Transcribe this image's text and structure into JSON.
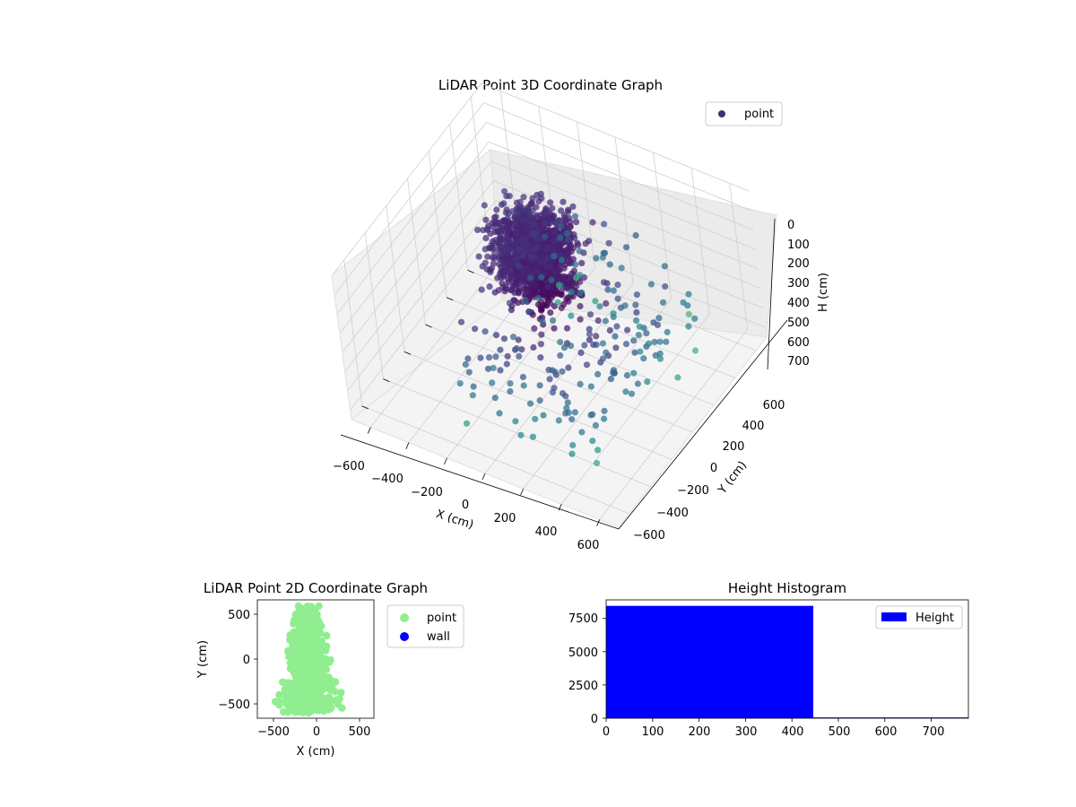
{
  "colors": {
    "point_3d": "#472d7b",
    "point_2d": "#90ee90",
    "wall": "#0000ff",
    "hist_bar": "#0000ff",
    "pane": "#f2f2f2",
    "grid": "#cfcfcf"
  },
  "chart_data": [
    {
      "type": "scatter",
      "title": "LiDAR Point 3D Coordinate Graph",
      "xlabel": "X (cm)",
      "ylabel": "Y (cm)",
      "zlabel": "H (cm)",
      "x_ticks": [
        "−600",
        "−400",
        "−200",
        "0",
        "200",
        "400",
        "600"
      ],
      "y_ticks": [
        "−600",
        "−400",
        "−200",
        "0",
        "200",
        "400",
        "600"
      ],
      "z_ticks": [
        "0",
        "100",
        "200",
        "300",
        "400",
        "500",
        "600",
        "700"
      ],
      "xlim": [
        -700,
        700
      ],
      "ylim": [
        -700,
        700
      ],
      "zlim": [
        0,
        750
      ],
      "z_inverted": true,
      "colormap": "viridis",
      "legend": [
        "point"
      ],
      "legend_position": "upper right",
      "grid": true
    },
    {
      "type": "scatter",
      "title": "LiDAR Point 2D Coordinate Graph",
      "xlabel": "X (cm)",
      "ylabel": "Y (cm)",
      "x_ticks": [
        "−500",
        "0",
        "500"
      ],
      "y_ticks": [
        "500",
        "0",
        "−500"
      ],
      "xlim": [
        -680,
        680
      ],
      "ylim": [
        -680,
        680
      ],
      "series": [
        {
          "name": "point",
          "color": "#90ee90"
        },
        {
          "name": "wall",
          "color": "#0000ff"
        }
      ],
      "legend_position": "outside right"
    },
    {
      "type": "bar",
      "title": "Height Histogram",
      "x_ticks": [
        "0",
        "100",
        "200",
        "300",
        "400",
        "500",
        "600",
        "700"
      ],
      "y_ticks": [
        "0",
        "2500",
        "5000",
        "7500"
      ],
      "xlim": [
        0,
        780
      ],
      "ylim": [
        0,
        8900
      ],
      "bins": [
        {
          "x0": 0,
          "x1": 446,
          "count": 8450
        },
        {
          "x0": 446,
          "x1": 780,
          "count": 60
        }
      ],
      "legend": [
        "Height"
      ],
      "legend_position": "upper right"
    }
  ]
}
